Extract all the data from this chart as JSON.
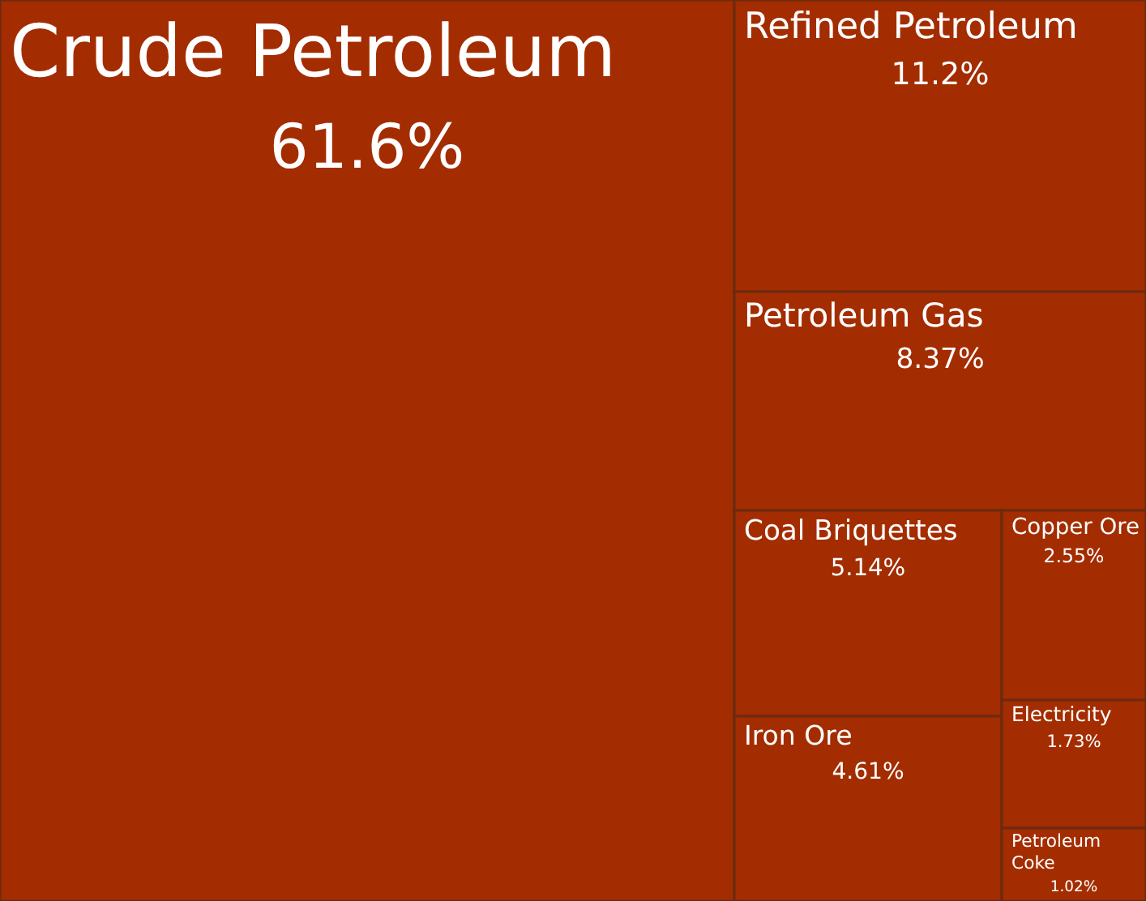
{
  "chart_data": {
    "type": "other",
    "categories": [
      "Crude Petroleum",
      "Refined Petroleum",
      "Petroleum Gas",
      "Coal Briquettes",
      "Iron Ore",
      "Copper Ore",
      "Electricity",
      "Petroleum Coke"
    ],
    "values": [
      61.6,
      11.2,
      8.37,
      5.14,
      4.61,
      2.55,
      1.73,
      1.02
    ],
    "value_labels": [
      "61.6%",
      "11.2%",
      "8.37%",
      "5.14%",
      "4.61%",
      "2.55%",
      "1.73%",
      "1.02%"
    ],
    "color": "#a32d00"
  }
}
